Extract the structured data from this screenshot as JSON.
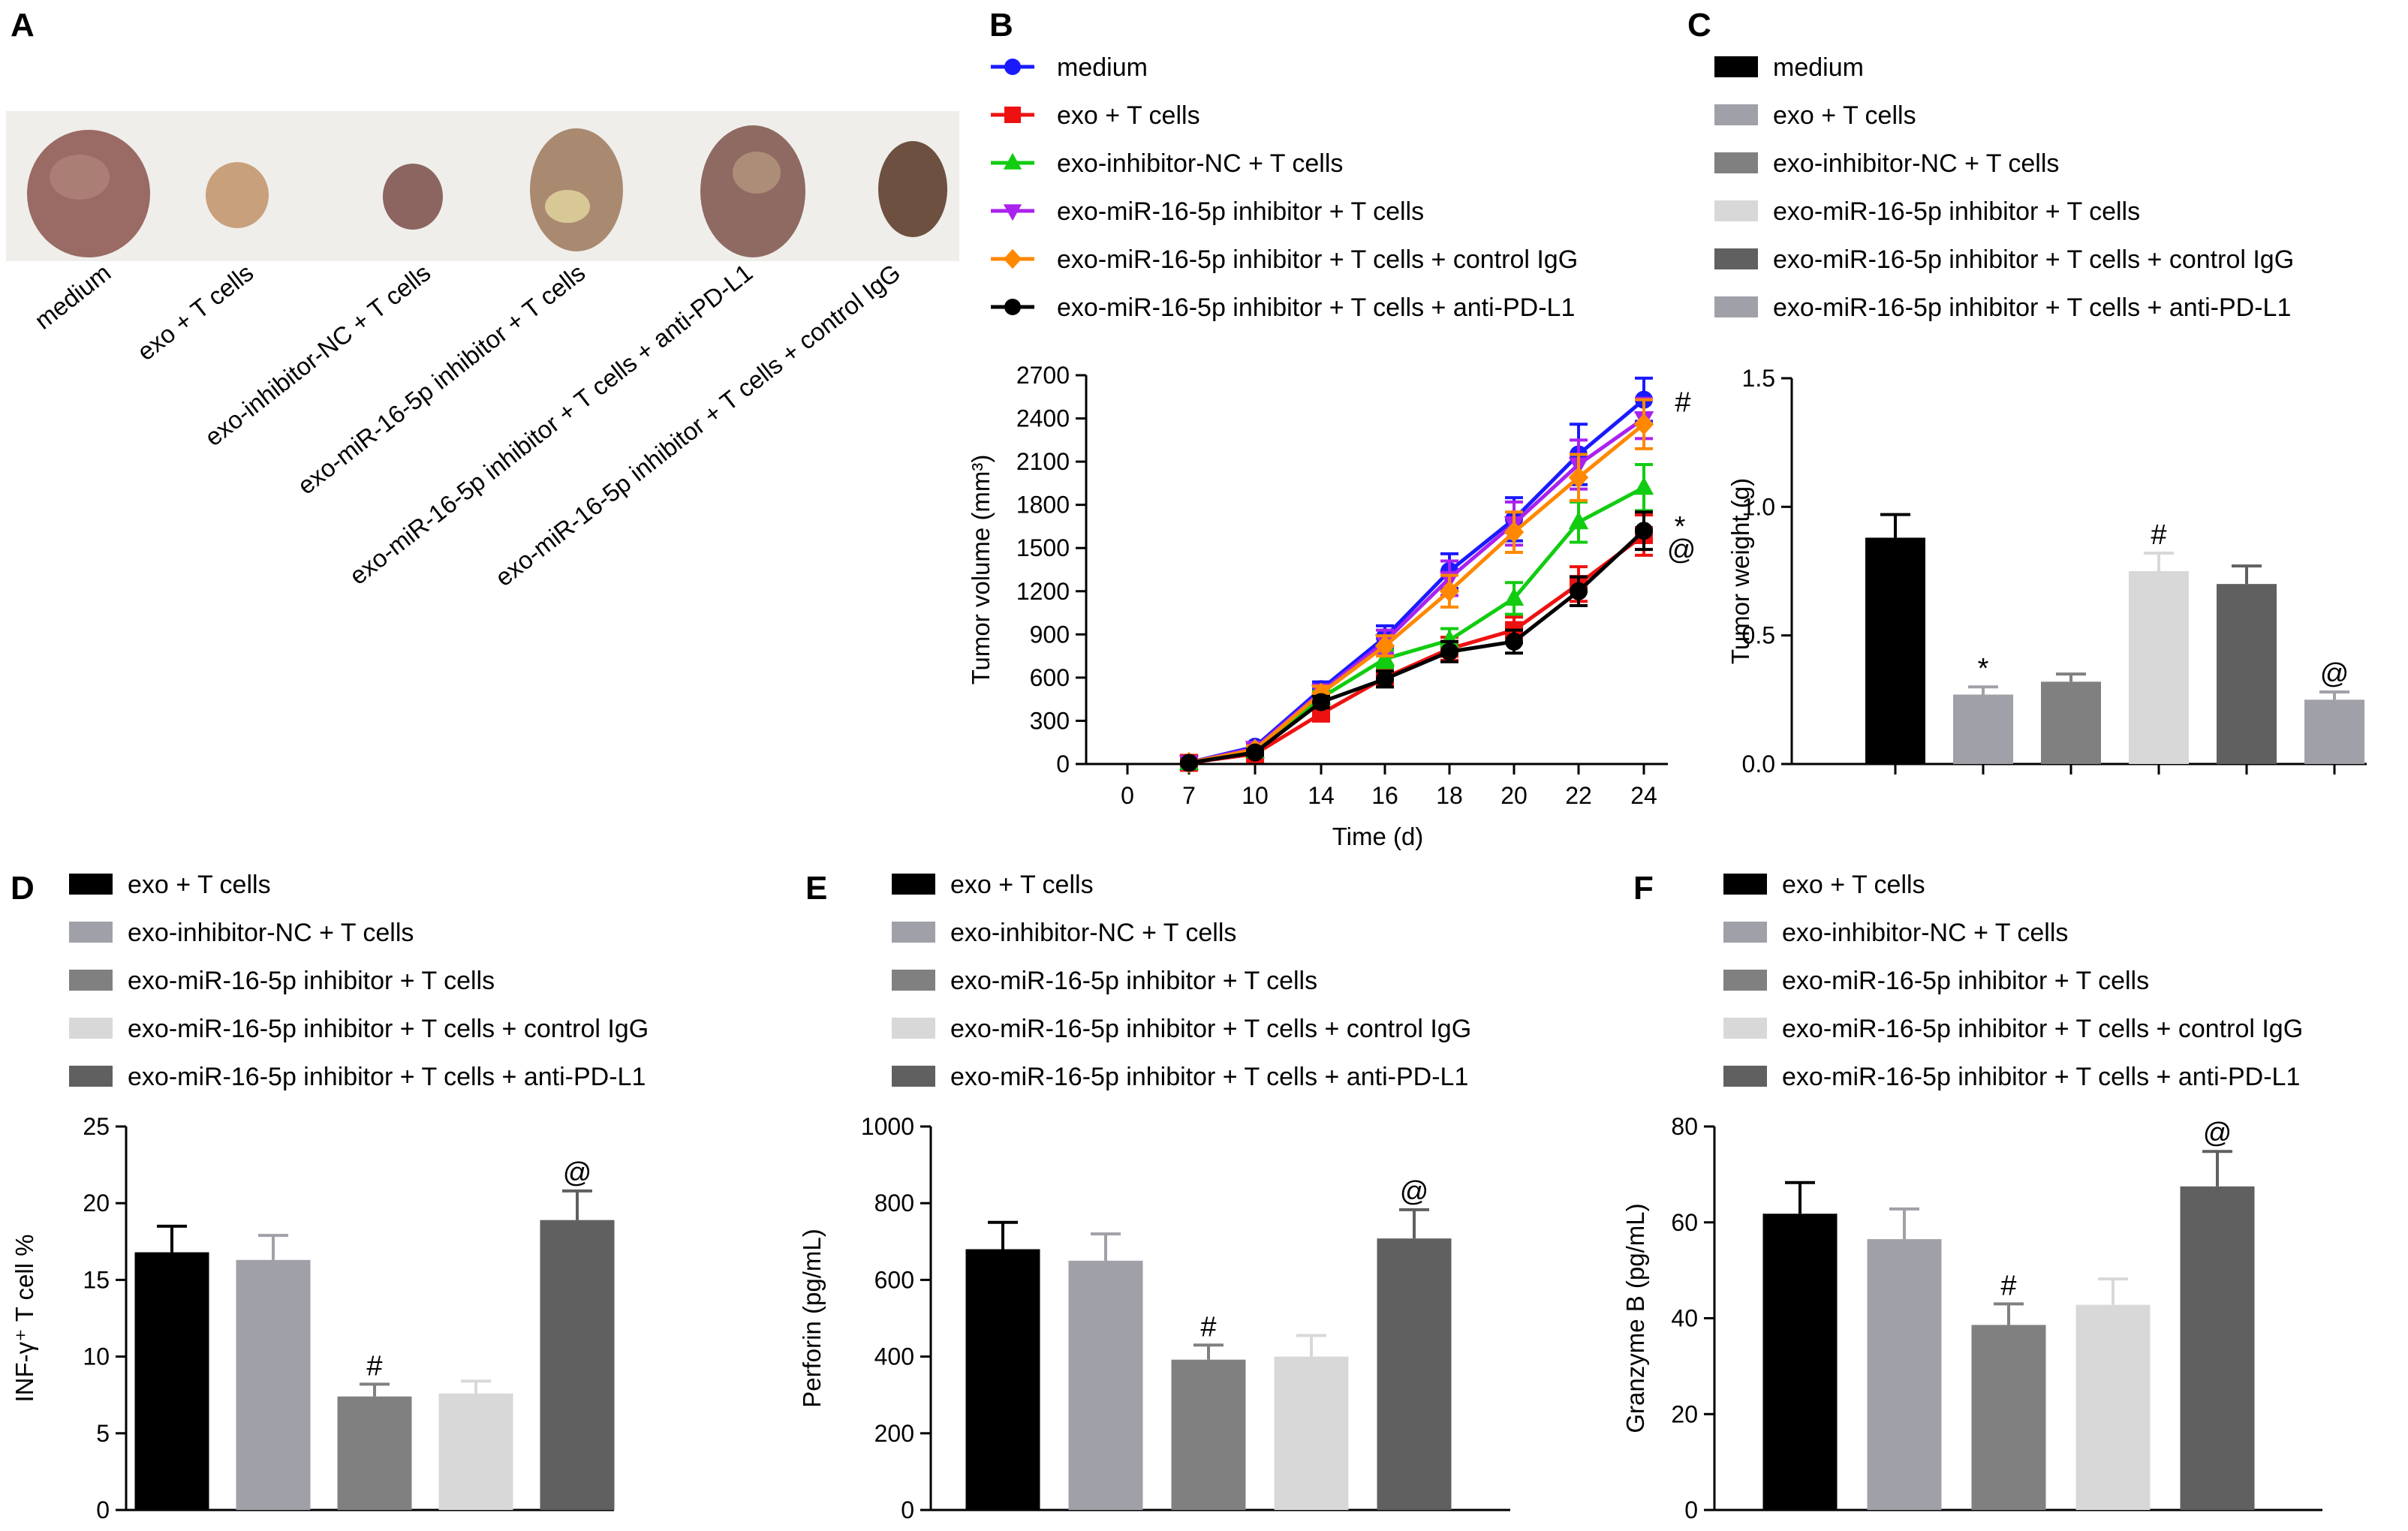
{
  "panels": {
    "A": {
      "label": "A",
      "captions": [
        "medium",
        "exo + T cells",
        "exo-inhibitor-NC + T cells",
        "exo-miR-16-5p inhibitor + T cells",
        "exo-miR-16-5p inhibitor + T cells + anti-PD-L1",
        "exo-miR-16-5p inhibitor + T cells + control IgG"
      ]
    },
    "B": {
      "label": "B"
    },
    "C": {
      "label": "C"
    },
    "D": {
      "label": "D"
    },
    "E": {
      "label": "E"
    },
    "F": {
      "label": "F"
    }
  },
  "chart_data": [
    {
      "id": "B",
      "type": "line",
      "xlabel": "Time (d)",
      "ylabel": "Tumor volume (mm³)",
      "x": [
        7,
        10,
        14,
        16,
        18,
        20,
        22,
        24
      ],
      "x_ticks": [
        0,
        7,
        10,
        14,
        16,
        18,
        20,
        22,
        24
      ],
      "ylim": [
        0,
        2700
      ],
      "y_ticks": [
        0,
        300,
        600,
        900,
        1200,
        1500,
        1800,
        2100,
        2400,
        2700
      ],
      "series": [
        {
          "name": "medium",
          "color": "#1a1aff",
          "marker": "circle",
          "values": [
            10,
            120,
            520,
            880,
            1340,
            1700,
            2150,
            2530
          ],
          "err": [
            10,
            25,
            50,
            80,
            120,
            150,
            210,
            150
          ]
        },
        {
          "name": "exo + T cells",
          "color": "#ee1111",
          "marker": "square",
          "values": [
            8,
            70,
            350,
            600,
            800,
            930,
            1250,
            1590
          ],
          "err": [
            8,
            20,
            40,
            60,
            80,
            90,
            120,
            140
          ]
        },
        {
          "name": "exo-inhibitor-NC + T cells",
          "color": "#11cc11",
          "marker": "triangle-up",
          "values": [
            8,
            90,
            460,
            730,
            860,
            1150,
            1680,
            1920
          ],
          "err": [
            8,
            20,
            45,
            60,
            80,
            110,
            140,
            160
          ]
        },
        {
          "name": "exo-miR-16-5p inhibitor + T cells",
          "color": "#aa22ee",
          "marker": "triangle-down",
          "values": [
            10,
            110,
            500,
            850,
            1290,
            1670,
            2080,
            2400
          ],
          "err": [
            10,
            25,
            50,
            80,
            120,
            150,
            170,
            140
          ]
        },
        {
          "name": "exo-miR-16-5p inhibitor + T cells + control IgG",
          "color": "#ff8800",
          "marker": "diamond",
          "values": [
            10,
            100,
            490,
            820,
            1200,
            1610,
            1990,
            2360
          ],
          "err": [
            10,
            25,
            50,
            70,
            110,
            140,
            160,
            170
          ]
        },
        {
          "name": "exo-miR-16-5p inhibitor + T cells + anti-PD-L1",
          "color": "#000000",
          "marker": "circle",
          "values": [
            8,
            80,
            430,
            590,
            780,
            850,
            1200,
            1620
          ],
          "err": [
            8,
            20,
            40,
            55,
            70,
            80,
            100,
            130
          ]
        }
      ],
      "annotations": [
        {
          "text": "#",
          "series": 0
        },
        {
          "text": "*",
          "series": 1
        },
        {
          "text": "@",
          "series": 5
        }
      ]
    },
    {
      "id": "C",
      "type": "bar",
      "ylabel": "Tumor weight (g)",
      "ylim": [
        0,
        1.5
      ],
      "y_ticks": [
        "0.0",
        "0.5",
        "1.0",
        "1.5"
      ],
      "categories": [
        "medium",
        "exo + T cells",
        "exo-inhibitor-NC + T cells",
        "exo-miR-16-5p inhibitor + T cells",
        "exo-miR-16-5p inhibitor + T cells + control IgG",
        "exo-miR-16-5p inhibitor + T cells + anti-PD-L1"
      ],
      "colors": [
        "#000000",
        "#a0a0a8",
        "#808080",
        "#d8d8d8",
        "#606060",
        "#a0a0a8"
      ],
      "values": [
        0.88,
        0.27,
        0.32,
        0.75,
        0.7,
        0.25
      ],
      "err": [
        0.09,
        0.03,
        0.03,
        0.07,
        0.07,
        0.03
      ],
      "sig": [
        "",
        "*",
        "",
        "#",
        "",
        "@"
      ]
    },
    {
      "id": "D",
      "type": "bar",
      "ylabel": "INF-γ⁺ T cell %",
      "ylim": [
        0,
        25
      ],
      "y_ticks": [
        "0",
        "5",
        "10",
        "15",
        "20",
        "25"
      ],
      "categories": [
        "exo + T cells",
        "exo-inhibitor-NC + T cells",
        "exo-miR-16-5p inhibitor + T cells",
        "exo-miR-16-5p inhibitor + T cells + control IgG",
        "exo-miR-16-5p inhibitor + T cells + anti-PD-L1"
      ],
      "colors": [
        "#000000",
        "#a0a0a8",
        "#808080",
        "#d8d8d8",
        "#606060"
      ],
      "values": [
        16.8,
        16.3,
        7.4,
        7.6,
        18.9
      ],
      "err": [
        1.7,
        1.6,
        0.8,
        0.8,
        1.9
      ],
      "sig": [
        "",
        "",
        "#",
        "",
        "@"
      ]
    },
    {
      "id": "E",
      "type": "bar",
      "ylabel": "Perforin (pg/mL)",
      "ylim": [
        0,
        1000
      ],
      "y_ticks": [
        "0",
        "200",
        "400",
        "600",
        "800",
        "1000"
      ],
      "categories": [
        "exo + T cells",
        "exo-inhibitor-NC + T cells",
        "exo-miR-16-5p inhibitor + T cells",
        "exo-miR-16-5p inhibitor + T cells + control IgG",
        "exo-miR-16-5p inhibitor + T cells + anti-PD-L1"
      ],
      "colors": [
        "#000000",
        "#a0a0a8",
        "#808080",
        "#d8d8d8",
        "#606060"
      ],
      "values": [
        680,
        650,
        392,
        400,
        708
      ],
      "err": [
        70,
        70,
        38,
        55,
        75
      ],
      "sig": [
        "",
        "",
        "#",
        "",
        "@"
      ]
    },
    {
      "id": "F",
      "type": "bar",
      "ylabel": "Granzyme B (pg/mL)",
      "ylim": [
        0,
        80
      ],
      "y_ticks": [
        "0",
        "20",
        "40",
        "60",
        "80"
      ],
      "categories": [
        "exo + T cells",
        "exo-inhibitor-NC + T cells",
        "exo-miR-16-5p inhibitor + T cells",
        "exo-miR-16-5p inhibitor + T cells + control IgG",
        "exo-miR-16-5p inhibitor + T cells + anti-PD-L1"
      ],
      "colors": [
        "#000000",
        "#a0a0a8",
        "#808080",
        "#d8d8d8",
        "#606060"
      ],
      "values": [
        61.8,
        56.5,
        38.6,
        42.8,
        67.5
      ],
      "err": [
        6.5,
        6.3,
        4.4,
        5.4,
        7.3
      ],
      "sig": [
        "",
        "",
        "#",
        "",
        "@"
      ]
    }
  ]
}
